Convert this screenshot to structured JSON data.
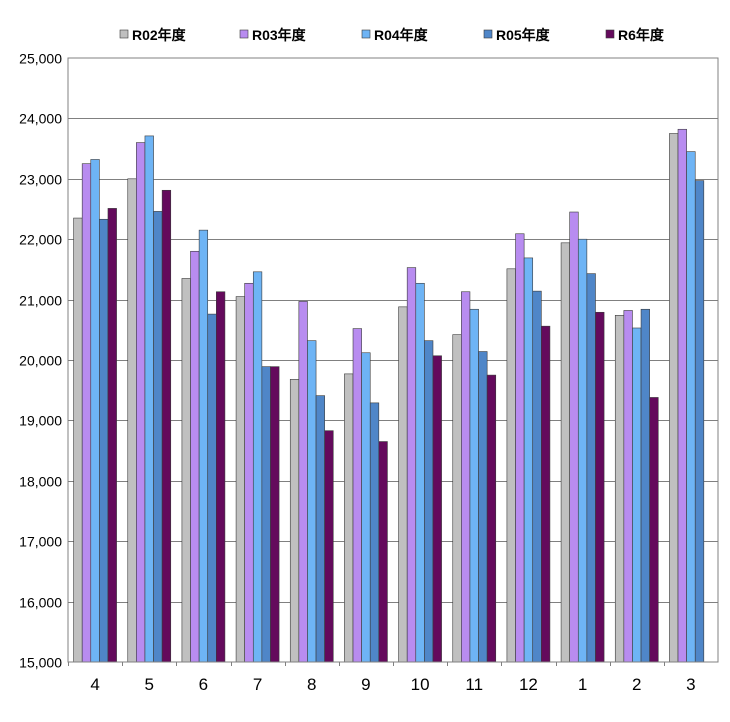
{
  "chart_data": {
    "type": "bar",
    "title": "",
    "xlabel": "",
    "ylabel": "",
    "categories": [
      "4",
      "5",
      "6",
      "7",
      "8",
      "9",
      "10",
      "11",
      "12",
      "1",
      "2",
      "3"
    ],
    "ylim": [
      15000,
      25000
    ],
    "yticks": [
      15000,
      16000,
      17000,
      18000,
      19000,
      20000,
      21000,
      22000,
      23000,
      24000,
      25000
    ],
    "ytick_labels": [
      "15,000",
      "16,000",
      "17,000",
      "18,000",
      "19,000",
      "20,000",
      "21,000",
      "22,000",
      "23,000",
      "24,000",
      "25,000"
    ],
    "grid": true,
    "legend_position": "top",
    "series": [
      {
        "name": "R02年度",
        "color": "#c0c0c0",
        "values": [
          22350,
          23000,
          21350,
          21050,
          19680,
          19770,
          20880,
          20420,
          21510,
          21940,
          20740,
          23750
        ]
      },
      {
        "name": "R03年度",
        "color": "#b88cf0",
        "values": [
          23250,
          23600,
          21800,
          21270,
          20970,
          20520,
          21530,
          21130,
          22090,
          22450,
          20820,
          23820
        ]
      },
      {
        "name": "R04年度",
        "color": "#6eb4f5",
        "values": [
          23320,
          23710,
          22150,
          21460,
          20320,
          20120,
          21270,
          20840,
          21690,
          22000,
          20530,
          23450
        ]
      },
      {
        "name": "R05年度",
        "color": "#4f86c8",
        "values": [
          22330,
          22460,
          20760,
          19890,
          19410,
          19290,
          20320,
          20140,
          21140,
          21430,
          20840,
          22970
        ]
      },
      {
        "name": "R6年度",
        "color": "#640a5c",
        "values": [
          22510,
          22810,
          21130,
          19890,
          18830,
          18650,
          20070,
          19750,
          20560,
          20790,
          19380,
          null
        ]
      }
    ]
  }
}
